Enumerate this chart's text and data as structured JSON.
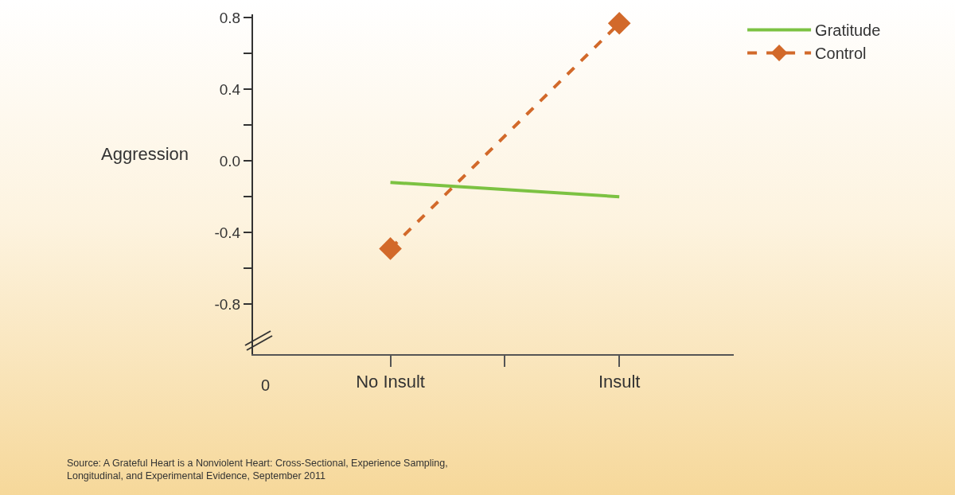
{
  "chart_data": {
    "type": "line",
    "ylabel": "Aggression",
    "categories": [
      "No Insult",
      "Insult"
    ],
    "series": [
      {
        "name": "Gratitude",
        "color": "#7cc242",
        "values": [
          -0.12,
          -0.2
        ],
        "marker": "none",
        "line_style": "solid"
      },
      {
        "name": "Control",
        "color": "#d2692a",
        "values": [
          -0.49,
          0.77
        ],
        "marker": "diamond",
        "line_style": "dashed"
      }
    ],
    "ylim": [
      -1.08,
      0.82
    ],
    "yticks": [
      {
        "value": -0.8,
        "label": "-0.8"
      },
      {
        "value": -0.6,
        "label": null
      },
      {
        "value": -0.4,
        "label": "-0.4"
      },
      {
        "value": -0.2,
        "label": null
      },
      {
        "value": 0,
        "label": "0.0"
      },
      {
        "value": 0.2,
        "label": null
      },
      {
        "value": 0.4,
        "label": "0.4"
      },
      {
        "value": 0.6,
        "label": null
      },
      {
        "value": 0.8,
        "label": "0.8"
      }
    ],
    "grid": false,
    "legend": "top right",
    "annotations": [
      "0",
      "Source: A Grateful Heart is a Nonviolent Heart: Cross-Sectional, Experience Sampling,\nLongitudinal, and Experimental Evidence, September 2011"
    ]
  }
}
